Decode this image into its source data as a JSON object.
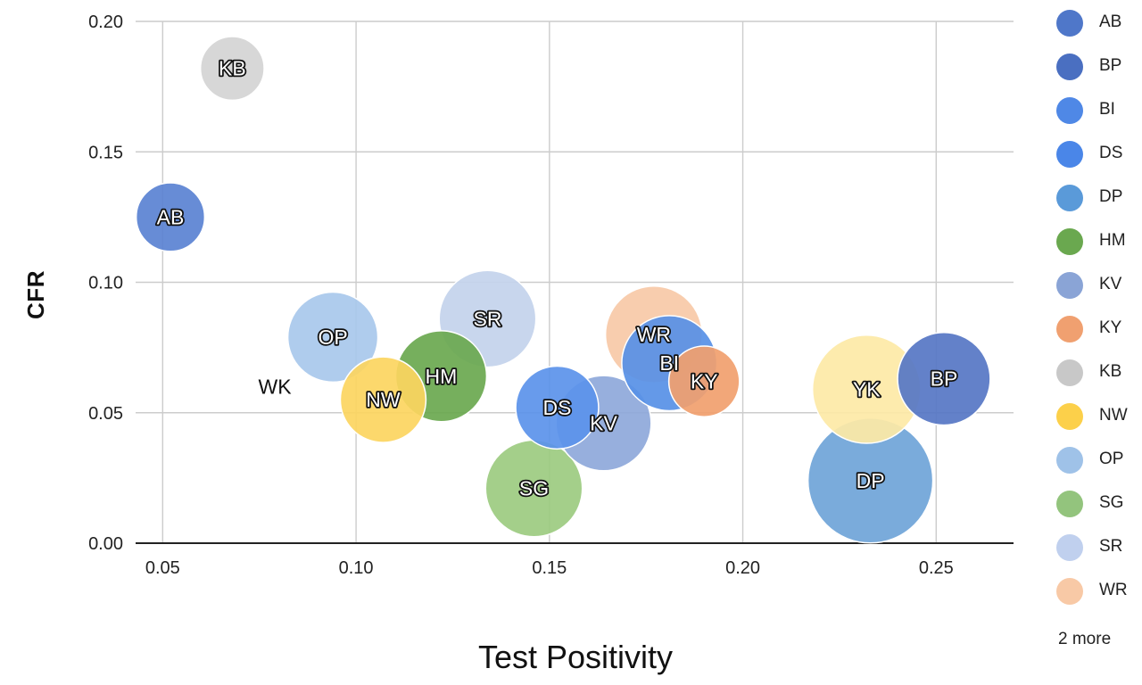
{
  "chart_data": {
    "type": "scatter",
    "title": "",
    "xlabel": "Test Positivity",
    "ylabel": "CFR",
    "xlim": [
      0.043,
      0.27
    ],
    "ylim": [
      0.0,
      0.2
    ],
    "x_ticks": [
      "0.05",
      "0.10",
      "0.15",
      "0.20",
      "0.25"
    ],
    "x_tick_values": [
      0.05,
      0.1,
      0.15,
      0.2,
      0.25
    ],
    "y_ticks": [
      "0.00",
      "0.05",
      "0.10",
      "0.15",
      "0.20"
    ],
    "y_tick_values": [
      0.0,
      0.05,
      0.1,
      0.15,
      0.2
    ],
    "grid": true,
    "legend_position": "right",
    "points": [
      {
        "label": "DP",
        "x": 0.233,
        "y": 0.024,
        "size": 1.0,
        "color": "#6fa4d8"
      },
      {
        "label": "YK",
        "x": 0.232,
        "y": 0.059,
        "size": 0.75,
        "color": "#fde9a6"
      },
      {
        "label": "SR",
        "x": 0.134,
        "y": 0.086,
        "size": 0.6,
        "color": "#c3d2ec"
      },
      {
        "label": "WR",
        "x": 0.177,
        "y": 0.08,
        "size": 0.6,
        "color": "#f7c9a7"
      },
      {
        "label": "SG",
        "x": 0.146,
        "y": 0.021,
        "size": 0.6,
        "color": "#9ccb80"
      },
      {
        "label": "KV",
        "x": 0.164,
        "y": 0.046,
        "size": 0.58,
        "color": "#8ea8da"
      },
      {
        "label": "BI",
        "x": 0.181,
        "y": 0.069,
        "size": 0.58,
        "color": "#5790e6"
      },
      {
        "label": "BP",
        "x": 0.252,
        "y": 0.063,
        "size": 0.55,
        "color": "#5676c4"
      },
      {
        "label": "HM",
        "x": 0.122,
        "y": 0.064,
        "size": 0.53,
        "color": "#6aa84f"
      },
      {
        "label": "OP",
        "x": 0.094,
        "y": 0.079,
        "size": 0.52,
        "color": "#a8c8ec"
      },
      {
        "label": "NW",
        "x": 0.107,
        "y": 0.055,
        "size": 0.47,
        "color": "#fcd55f"
      },
      {
        "label": "DS",
        "x": 0.152,
        "y": 0.052,
        "size": 0.44,
        "color": "#5b93ea"
      },
      {
        "label": "KY",
        "x": 0.19,
        "y": 0.062,
        "size": 0.32,
        "color": "#f1a06e"
      },
      {
        "label": "AB",
        "x": 0.052,
        "y": 0.125,
        "size": 0.3,
        "color": "#5a82d2"
      },
      {
        "label": "KB",
        "x": 0.068,
        "y": 0.182,
        "size": 0.26,
        "color": "#d4d4d4"
      },
      {
        "label": "WK",
        "x": 0.079,
        "y": 0.06,
        "size": 0.0,
        "color": "#000000"
      }
    ],
    "legend": [
      {
        "label": "AB",
        "color": "#4f77c9"
      },
      {
        "label": "BP",
        "color": "#4a6fc1"
      },
      {
        "label": "BI",
        "color": "#4f88e6"
      },
      {
        "label": "DS",
        "color": "#4a86e8"
      },
      {
        "label": "DP",
        "color": "#5a9ad9"
      },
      {
        "label": "HM",
        "color": "#6aa84f"
      },
      {
        "label": "KV",
        "color": "#8aa4d6"
      },
      {
        "label": "KY",
        "color": "#f0a070"
      },
      {
        "label": "KB",
        "color": "#c8c8c8"
      },
      {
        "label": "NW",
        "color": "#fcd04a"
      },
      {
        "label": "OP",
        "color": "#9fc2e8"
      },
      {
        "label": "SG",
        "color": "#93c47d"
      },
      {
        "label": "SR",
        "color": "#c0d0ee"
      },
      {
        "label": "WR",
        "color": "#f8c9a6"
      }
    ],
    "legend_more": "2 more"
  }
}
